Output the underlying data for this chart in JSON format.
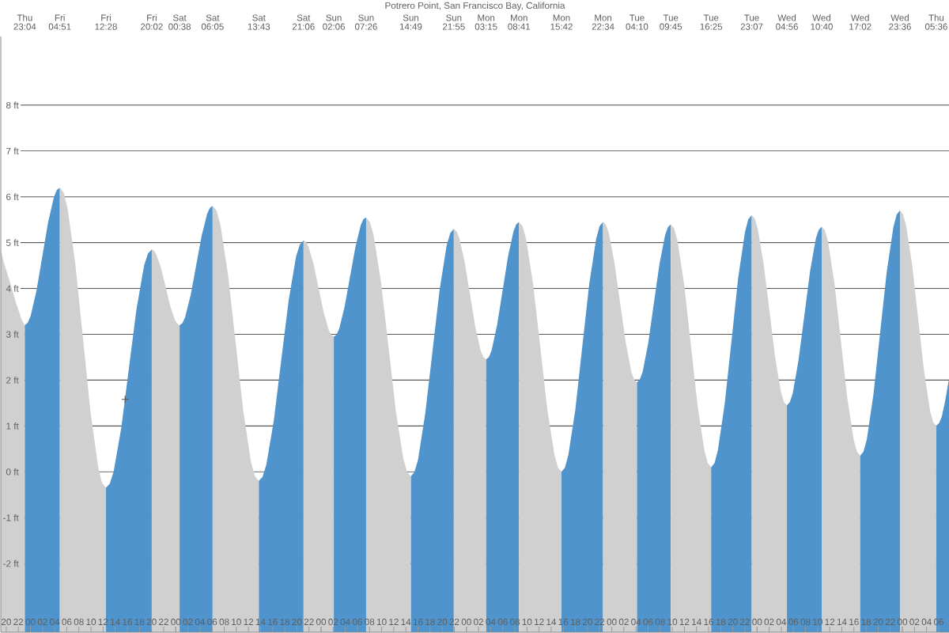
{
  "chart_data": {
    "type": "area",
    "title": "Potrero Point, San Francisco Bay, California",
    "xlim": [
      19.1,
      175.7
    ],
    "ylim": [
      -3.5,
      9.5
    ],
    "grid": "y",
    "xticks": [
      20,
      22,
      {
        "value": 24,
        "label": "00"
      },
      {
        "value": 26,
        "label": "02"
      },
      {
        "value": 28,
        "label": "04"
      },
      {
        "value": 30,
        "label": "06"
      },
      {
        "value": 32,
        "label": "08"
      },
      {
        "value": 34,
        "label": "10"
      },
      {
        "value": 36,
        "label": "12"
      },
      {
        "value": 38,
        "label": "14"
      },
      {
        "value": 40,
        "label": "16"
      },
      {
        "value": 42,
        "label": "18"
      },
      {
        "value": 44,
        "label": "20"
      },
      {
        "value": 46,
        "label": "22"
      },
      {
        "value": 48,
        "label": "00"
      },
      {
        "value": 50,
        "label": "02"
      },
      {
        "value": 52,
        "label": "04"
      },
      {
        "value": 54,
        "label": "06"
      },
      {
        "value": 56,
        "label": "08"
      },
      {
        "value": 58,
        "label": "10"
      },
      {
        "value": 60,
        "label": "12"
      },
      {
        "value": 62,
        "label": "14"
      },
      {
        "value": 64,
        "label": "16"
      },
      {
        "value": 66,
        "label": "18"
      },
      {
        "value": 68,
        "label": "20"
      },
      {
        "value": 70,
        "label": "22"
      },
      {
        "value": 72,
        "label": "00"
      },
      {
        "value": 74,
        "label": "02"
      },
      {
        "value": 76,
        "label": "04"
      },
      {
        "value": 78,
        "label": "06"
      },
      {
        "value": 80,
        "label": "08"
      },
      {
        "value": 82,
        "label": "10"
      },
      {
        "value": 84,
        "label": "12"
      },
      {
        "value": 86,
        "label": "14"
      },
      {
        "value": 88,
        "label": "16"
      },
      {
        "value": 90,
        "label": "18"
      },
      {
        "value": 92,
        "label": "20"
      },
      {
        "value": 94,
        "label": "22"
      },
      {
        "value": 96,
        "label": "00"
      },
      {
        "value": 98,
        "label": "02"
      },
      {
        "value": 100,
        "label": "04"
      },
      {
        "value": 102,
        "label": "06"
      },
      {
        "value": 104,
        "label": "08"
      },
      {
        "value": 106,
        "label": "10"
      },
      {
        "value": 108,
        "label": "12"
      },
      {
        "value": 110,
        "label": "14"
      },
      {
        "value": 112,
        "label": "16"
      },
      {
        "value": 114,
        "label": "18"
      },
      {
        "value": 116,
        "label": "20"
      },
      {
        "value": 118,
        "label": "22"
      },
      {
        "value": 120,
        "label": "00"
      },
      {
        "value": 122,
        "label": "02"
      },
      {
        "value": 124,
        "label": "04"
      },
      {
        "value": 126,
        "label": "06"
      },
      {
        "value": 128,
        "label": "08"
      },
      {
        "value": 130,
        "label": "10"
      },
      {
        "value": 132,
        "label": "12"
      },
      {
        "value": 134,
        "label": "14"
      },
      {
        "value": 136,
        "label": "16"
      },
      {
        "value": 138,
        "label": "18"
      },
      {
        "value": 140,
        "label": "20"
      },
      {
        "value": 142,
        "label": "22"
      },
      {
        "value": 144,
        "label": "00"
      },
      {
        "value": 146,
        "label": "02"
      },
      {
        "value": 148,
        "label": "04"
      },
      {
        "value": 150,
        "label": "06"
      },
      {
        "value": 152,
        "label": "08"
      },
      {
        "value": 154,
        "label": "10"
      },
      {
        "value": 156,
        "label": "12"
      },
      {
        "value": 158,
        "label": "14"
      },
      {
        "value": 160,
        "label": "16"
      },
      {
        "value": 162,
        "label": "18"
      },
      {
        "value": 164,
        "label": "20"
      },
      {
        "value": 166,
        "label": "22"
      },
      {
        "value": 168,
        "label": "00"
      },
      {
        "value": 170,
        "label": "02"
      },
      {
        "value": 172,
        "label": "04"
      },
      {
        "value": 174,
        "label": "06"
      }
    ],
    "yticks": [
      {
        "value": -2,
        "label": "-2 ft"
      },
      {
        "value": -1,
        "label": "-1 ft"
      },
      {
        "value": 0,
        "label": "0 ft"
      },
      {
        "value": 1,
        "label": "1 ft"
      },
      {
        "value": 2,
        "label": "2 ft"
      },
      {
        "value": 3,
        "label": "3 ft"
      },
      {
        "value": 4,
        "label": "4 ft"
      },
      {
        "value": 5,
        "label": "5 ft"
      },
      {
        "value": 6,
        "label": "6 ft"
      },
      {
        "value": 7,
        "label": "7 ft"
      },
      {
        "value": 8,
        "label": "8 ft"
      }
    ],
    "annotations": [
      "Thu 23:04",
      "Fri 04:51",
      "Fri 12:28",
      "Fri 20:02",
      "Sat 00:38",
      "Sat 06:05",
      "Sat 13:43",
      "Sat 21:06",
      "Sun 02:06",
      "Sun 07:26",
      "Sun 14:49",
      "Sun 21:55",
      "Mon 03:15",
      "Mon 08:41",
      "Mon 15:42",
      "Mon 22:34",
      "Tue 04:10",
      "Tue 09:45",
      "Tue 16:25",
      "Tue 23:07",
      "Wed 04:56",
      "Wed 10:40",
      "Wed 17:02",
      "Wed 23:36",
      "Thu 05:36"
    ],
    "series": [
      {
        "color": "#d0d0d0",
        "x": [
          19.1,
          19.615,
          20.6,
          21.6,
          22.6,
          23.067
        ],
        "values": [
          4.85,
          4.56,
          4.15,
          3.69,
          3.3,
          3.2
        ]
      },
      {
        "color": "#4f94cd",
        "x": [
          23.067,
          23.55,
          24.03,
          24.99,
          25.96,
          26.92,
          27.89,
          28.37,
          28.85
        ],
        "values": [
          3.2,
          3.25,
          3.4,
          3.95,
          4.7,
          5.45,
          6.0,
          6.15,
          6.2
        ]
      },
      {
        "color": "#d0d0d0",
        "x": [
          28.85,
          29.49,
          30.12,
          31.39,
          32.66,
          33.93,
          35.2,
          35.83,
          36.467
        ],
        "values": [
          6.2,
          6.09,
          5.76,
          4.56,
          2.93,
          1.29,
          0.09,
          -0.24,
          -0.35
        ]
      },
      {
        "color": "#4f94cd",
        "x": [
          36.467,
          37.1,
          37.73,
          38.99,
          40.25,
          41.51,
          42.77,
          43.4,
          44.033
        ],
        "values": [
          -0.35,
          -0.26,
          0.0,
          0.95,
          2.25,
          3.55,
          4.5,
          4.76,
          4.85
        ]
      },
      {
        "color": "#d0d0d0",
        "x": [
          44.033,
          44.42,
          44.8,
          45.57,
          46.33,
          47.1,
          47.87,
          48.25,
          48.633
        ],
        "values": [
          4.85,
          4.82,
          4.74,
          4.44,
          4.03,
          3.61,
          3.31,
          3.23,
          3.2
        ]
      },
      {
        "color": "#4f94cd",
        "x": [
          48.633,
          49.09,
          49.54,
          50.45,
          51.36,
          52.27,
          53.18,
          53.63,
          54.083
        ],
        "values": [
          3.2,
          3.24,
          3.37,
          3.85,
          4.5,
          5.15,
          5.63,
          5.76,
          5.8
        ]
      },
      {
        "color": "#d0d0d0",
        "x": [
          54.083,
          54.72,
          55.36,
          56.63,
          57.9,
          59.17,
          60.44,
          61.08,
          61.717
        ],
        "values": [
          5.8,
          5.7,
          5.4,
          4.3,
          2.8,
          1.3,
          0.2,
          -0.1,
          -0.2
        ]
      },
      {
        "color": "#4f94cd",
        "x": [
          61.717,
          62.33,
          62.95,
          64.18,
          65.41,
          66.64,
          67.87,
          68.49,
          69.1
        ],
        "values": [
          -0.2,
          -0.11,
          0.15,
          1.11,
          2.43,
          3.74,
          4.7,
          4.96,
          5.05
        ]
      },
      {
        "color": "#d0d0d0",
        "x": [
          69.1,
          69.52,
          69.93,
          70.77,
          71.6,
          72.43,
          73.27,
          73.68,
          74.1
        ],
        "values": [
          5.05,
          5.01,
          4.91,
          4.53,
          4.0,
          3.48,
          3.09,
          2.99,
          2.95
        ]
      },
      {
        "color": "#4f94cd",
        "x": [
          74.1,
          74.54,
          74.99,
          75.88,
          76.77,
          77.66,
          78.54,
          78.99,
          79.433
        ],
        "values": [
          2.95,
          2.99,
          3.12,
          3.6,
          4.25,
          4.9,
          5.38,
          5.51,
          5.55
        ]
      },
      {
        "color": "#d0d0d0",
        "x": [
          79.433,
          80.05,
          80.66,
          81.89,
          83.13,
          84.36,
          85.59,
          86.2,
          86.817
        ],
        "values": [
          5.55,
          5.45,
          5.17,
          4.14,
          2.73,
          1.31,
          0.28,
          0.0,
          -0.1
        ]
      },
      {
        "color": "#4f94cd",
        "x": [
          86.817,
          87.41,
          88.0,
          89.18,
          90.37,
          91.55,
          92.73,
          93.33,
          93.917
        ],
        "values": [
          -0.1,
          -0.01,
          0.26,
          1.25,
          2.6,
          3.95,
          4.94,
          5.21,
          5.3
        ]
      },
      {
        "color": "#d0d0d0",
        "x": [
          93.917,
          94.36,
          94.81,
          95.69,
          96.58,
          97.47,
          98.36,
          98.81,
          99.25
        ],
        "values": [
          5.3,
          5.25,
          5.11,
          4.59,
          3.88,
          3.16,
          2.64,
          2.5,
          2.45
        ]
      },
      {
        "color": "#4f94cd",
        "x": [
          99.25,
          99.7,
          100.16,
          101.06,
          101.97,
          102.87,
          103.78,
          104.23,
          104.683
        ],
        "values": [
          2.45,
          2.5,
          2.65,
          3.2,
          3.95,
          4.7,
          5.25,
          5.4,
          5.45
        ]
      },
      {
        "color": "#d0d0d0",
        "x": [
          104.683,
          105.27,
          105.85,
          107.02,
          108.19,
          109.36,
          110.53,
          111.12,
          111.7
        ],
        "values": [
          5.45,
          5.36,
          5.08,
          4.09,
          2.73,
          1.36,
          0.37,
          0.09,
          0.0
        ]
      },
      {
        "color": "#4f94cd",
        "x": [
          111.7,
          112.27,
          112.84,
          113.99,
          115.13,
          116.28,
          117.42,
          117.99,
          118.567
        ],
        "values": [
          0.0,
          0.09,
          0.37,
          1.36,
          2.73,
          4.09,
          5.08,
          5.36,
          5.45
        ]
      },
      {
        "color": "#d0d0d0",
        "x": [
          118.567,
          119.03,
          119.5,
          120.43,
          121.37,
          122.3,
          123.23,
          123.7,
          124.167
        ],
        "values": [
          5.45,
          5.39,
          5.22,
          4.58,
          3.7,
          2.83,
          2.18,
          2.01,
          1.95
        ]
      },
      {
        "color": "#4f94cd",
        "x": [
          124.167,
          124.63,
          125.1,
          126.03,
          126.96,
          127.89,
          128.82,
          129.29,
          129.75
        ],
        "values": [
          1.95,
          2.01,
          2.18,
          2.81,
          3.68,
          4.54,
          5.17,
          5.34,
          5.4
        ]
      },
      {
        "color": "#d0d0d0",
        "x": [
          129.75,
          130.31,
          130.86,
          131.97,
          133.08,
          134.19,
          135.31,
          135.86,
          136.417
        ],
        "values": [
          5.4,
          5.31,
          5.04,
          4.08,
          2.75,
          1.43,
          0.46,
          0.19,
          0.1
        ]
      },
      {
        "color": "#4f94cd",
        "x": [
          136.417,
          136.98,
          137.53,
          138.65,
          139.77,
          140.88,
          142.0,
          142.56,
          143.117
        ],
        "values": [
          0.1,
          0.19,
          0.47,
          1.48,
          2.85,
          4.23,
          5.23,
          5.51,
          5.6
        ]
      },
      {
        "color": "#d0d0d0",
        "x": [
          143.117,
          143.6,
          144.09,
          145.06,
          146.03,
          146.99,
          147.96,
          148.45,
          148.933
        ],
        "values": [
          5.6,
          5.53,
          5.32,
          4.56,
          3.53,
          2.49,
          1.73,
          1.52,
          1.45
        ]
      },
      {
        "color": "#4f94cd",
        "x": [
          148.933,
          149.41,
          149.89,
          150.84,
          151.8,
          152.76,
          153.71,
          154.19,
          154.667
        ],
        "values": [
          1.45,
          1.52,
          1.71,
          2.43,
          3.4,
          4.38,
          5.09,
          5.28,
          5.35
        ]
      },
      {
        "color": "#d0d0d0",
        "x": [
          154.667,
          155.2,
          155.73,
          156.79,
          157.85,
          158.91,
          159.97,
          160.5,
          161.033
        ],
        "values": [
          5.35,
          5.27,
          5.02,
          4.1,
          2.85,
          1.6,
          0.69,
          0.44,
          0.35
        ]
      },
      {
        "color": "#4f94cd",
        "x": [
          161.033,
          161.58,
          162.13,
          163.22,
          164.32,
          165.41,
          166.51,
          167.05,
          167.6
        ],
        "values": [
          0.35,
          0.44,
          0.71,
          1.69,
          3.03,
          4.36,
          5.34,
          5.61,
          5.7
        ]
      },
      {
        "color": "#d0d0d0",
        "x": [
          167.6,
          168.1,
          168.6,
          169.6,
          170.6,
          171.6,
          172.6,
          173.1,
          173.6
        ],
        "values": [
          5.7,
          5.62,
          5.39,
          4.53,
          3.35,
          2.18,
          1.31,
          1.08,
          1.0
        ]
      },
      {
        "color": "#4f94cd",
        "x": [
          173.6,
          174.1,
          174.5,
          175.0,
          175.7
        ],
        "values": [
          1.0,
          1.07,
          1.2,
          1.5,
          2.03
        ]
      },
      {
        "type": "scatter",
        "marker": "cross",
        "color": "#555555",
        "x": [
          39.64
        ],
        "values": [
          1.58
        ]
      }
    ]
  }
}
